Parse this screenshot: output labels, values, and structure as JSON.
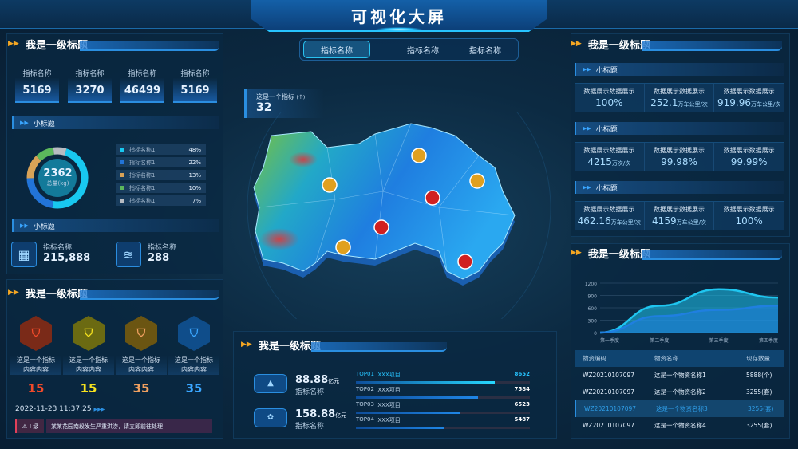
{
  "header": {
    "title": "可视化大屏"
  },
  "tabs": [
    {
      "label": "指标名称",
      "active": true
    },
    {
      "label": "指标名称"
    },
    {
      "label": "指标名称"
    }
  ],
  "left": {
    "title1": "我是一级标题",
    "kpis": [
      {
        "label": "指标名称",
        "value": "5169"
      },
      {
        "label": "指标名称",
        "value": "3270"
      },
      {
        "label": "指标名称",
        "value": "46499"
      },
      {
        "label": "指标名称",
        "value": "5169"
      }
    ],
    "sub1": "小标题",
    "donut": {
      "value": "2362",
      "label": "总量(kg)",
      "items": [
        {
          "name": "指标名称1",
          "pct": "48%",
          "v": 48,
          "color": "#18c8f0"
        },
        {
          "name": "指标名称1",
          "pct": "22%",
          "v": 22,
          "color": "#2274d8"
        },
        {
          "name": "指标名称1",
          "pct": "13%",
          "v": 13,
          "color": "#d9a257"
        },
        {
          "name": "指标名称1",
          "pct": "10%",
          "v": 10,
          "color": "#5cb85c"
        },
        {
          "name": "指标名称1",
          "pct": "7%",
          "v": 7,
          "color": "#b8bcc2"
        }
      ]
    },
    "sub2": "小标题",
    "stats": [
      {
        "label": "指标名称",
        "value": "215,888",
        "icon": "boxes-icon"
      },
      {
        "label": "指标名称",
        "value": "288",
        "icon": "layers-icon"
      }
    ],
    "title2": "我是一级标题",
    "alarms": [
      {
        "text1": "这是一个指标",
        "text2": "内容内容",
        "value": "15",
        "color": "#f04a2a",
        "bg": "#7a2a18"
      },
      {
        "text1": "这是一个指标",
        "text2": "内容内容",
        "value": "15",
        "color": "#f5e11f",
        "bg": "#6b6a12"
      },
      {
        "text1": "这是一个指标",
        "text2": "内容内容",
        "value": "35",
        "color": "#f0a060",
        "bg": "#6b5512"
      },
      {
        "text1": "这是一个指标",
        "text2": "内容内容",
        "value": "35",
        "color": "#3aa6ff",
        "bg": "#0f4d8a"
      }
    ],
    "datetime": "2022-11-23 11:37:25",
    "alert": {
      "level": "I 级",
      "message": "某某花园南段发生严重洪涝，请立即前往处理!"
    }
  },
  "center": {
    "indicator": {
      "label": "这是一个指标",
      "unit": "(个)",
      "value": "32"
    },
    "title": "我是一级标题",
    "money": [
      {
        "value": "88.88",
        "unit": "亿元",
        "label": "指标名称",
        "icon": "chart-growth-icon"
      },
      {
        "value": "158.88",
        "unit": "亿元",
        "label": "指标名称",
        "icon": "gear-icon"
      }
    ],
    "top": [
      {
        "rank": "TOP01",
        "name": "XXX项目",
        "value": "8652",
        "v": 8652
      },
      {
        "rank": "TOP02",
        "name": "XXX项目",
        "value": "7584",
        "v": 7584
      },
      {
        "rank": "TOP03",
        "name": "XXX项目",
        "value": "6523",
        "v": 6523
      },
      {
        "rank": "TOP04",
        "name": "XXX项目",
        "value": "5487",
        "v": 5487
      }
    ]
  },
  "right": {
    "title1": "我是一级标题",
    "groups": [
      {
        "sub": "小标题",
        "cells": [
          {
            "label": "数据展示数据展示",
            "value": "100%",
            "unit": ""
          },
          {
            "label": "数据展示数据展示",
            "value": "252.1",
            "unit": "万车公里/次"
          },
          {
            "label": "数据展示数据展示",
            "value": "919.96",
            "unit": "万车公里/次"
          }
        ]
      },
      {
        "sub": "小标题",
        "cells": [
          {
            "label": "数据展示数据展示",
            "value": "4215",
            "unit": "万次/次"
          },
          {
            "label": "数据展示数据展示",
            "value": "99.98%",
            "unit": ""
          },
          {
            "label": "数据展示数据展示",
            "value": "99.99%",
            "unit": ""
          }
        ]
      },
      {
        "sub": "小标题",
        "cells": [
          {
            "label": "数据展示数据展示",
            "value": "462.16",
            "unit": "万车公里/次"
          },
          {
            "label": "数据展示数据展示",
            "value": "4159",
            "unit": "万车公里/次"
          },
          {
            "label": "数据展示数据展示",
            "value": "100%",
            "unit": ""
          }
        ]
      }
    ],
    "title2": "我是一级标题",
    "table": {
      "headers": [
        "物资编码",
        "物资名称",
        "现存数量"
      ],
      "rows": [
        [
          "WZ20210107097",
          "这是一个物资名称1",
          "5888(个)"
        ],
        [
          "WZ20210107097",
          "这是一个物资名称2",
          "3255(套)"
        ],
        [
          "WZ20210107097",
          "这是一个物资名称3",
          "3255(套)"
        ],
        [
          "WZ20210107097",
          "这是一个物资名称4",
          "3255(套)"
        ]
      ],
      "selected_row": 2
    }
  },
  "chart_data": {
    "type": "area",
    "categories": [
      "第一季度",
      "第二季度",
      "第三季度",
      "第四季度"
    ],
    "yticks": [
      0,
      300,
      600,
      900,
      1200
    ],
    "ylim": [
      0,
      1200
    ],
    "series": [
      {
        "values": [
          0,
          650,
          1050,
          850
        ],
        "color": "#1fc6f0"
      },
      {
        "values": [
          0,
          400,
          550,
          650
        ],
        "color": "#1f7fe0"
      }
    ]
  },
  "colors": {
    "accent": "#2a8ee0",
    "highlight": "#27c4ff",
    "warning": "#f3a623"
  }
}
